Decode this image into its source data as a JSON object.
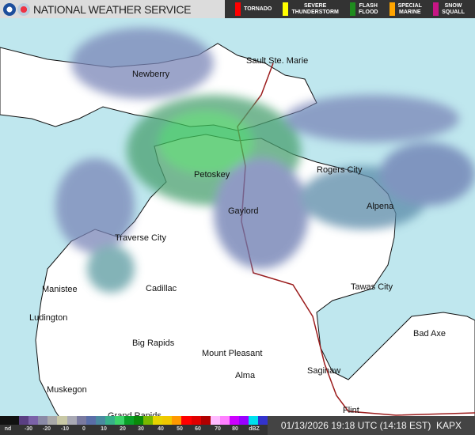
{
  "header": {
    "title": "NATIONAL WEATHER SERVICE",
    "warnings": [
      {
        "label": "TORNADO",
        "color": "#ff0000"
      },
      {
        "label": "SEVERE\nTHUNDERSTORM",
        "color": "#ffff00"
      },
      {
        "label": "FLASH\nFLOOD",
        "color": "#1e8c1e"
      },
      {
        "label": "SPECIAL\nMARINE",
        "color": "#ffa500"
      },
      {
        "label": "SNOW\nSQUALL",
        "color": "#c71585"
      }
    ]
  },
  "map": {
    "water_color": "#bfe7ee",
    "land_color": "#ffffff",
    "cities": [
      "Newberry",
      "Sault Ste. Marie",
      "Petoskey",
      "Rogers City",
      "Gaylord",
      "Alpena",
      "Traverse City",
      "Manistee",
      "Cadillac",
      "Tawas City",
      "Ludington",
      "Big Rapids",
      "Mount Pleasant",
      "Bad Axe",
      "Saginaw",
      "Alma",
      "Muskegon",
      "Grand Rapids",
      "Flint"
    ]
  },
  "legend": {
    "labels": [
      "nd",
      "-30",
      "-20",
      "-10",
      "0",
      "10",
      "20",
      "30",
      "40",
      "50",
      "60",
      "70",
      "80",
      "dBZ"
    ],
    "colors": [
      "#111111",
      "#111111",
      "#5a3f82",
      "#7b62a8",
      "#8a8aa6",
      "#a9a9a9",
      "#c9c9a6",
      "#a9a9b4",
      "#7a7aa0",
      "#5a6ea8",
      "#4a8aa0",
      "#38b08a",
      "#3cd46a",
      "#0aa028",
      "#0a8a0a",
      "#7ab800",
      "#e6d400",
      "#f0c800",
      "#ff9900",
      "#ff0000",
      "#e00000",
      "#b00000",
      "#ffbbff",
      "#ff80ff",
      "#cc00ff",
      "#9900ff",
      "#00e0ee",
      "#3333cc"
    ]
  },
  "timestamp": "01/13/2026 19:18 UTC (14:18 EST)",
  "station": "KAPX"
}
